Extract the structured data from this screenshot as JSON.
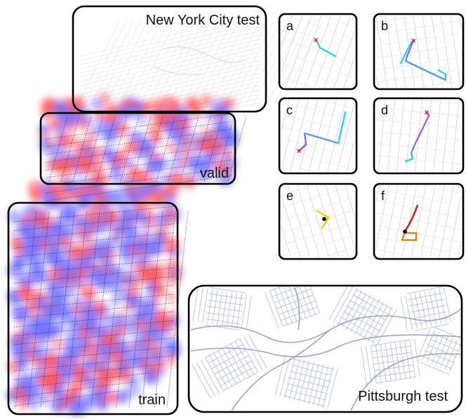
{
  "regions": {
    "nyc_test": {
      "label": "New York City test"
    },
    "valid": {
      "label": "valid"
    },
    "train": {
      "label": "train"
    },
    "pittsburgh_test": {
      "label": "Pittsburgh test"
    }
  },
  "panels": [
    {
      "letter": "a"
    },
    {
      "letter": "b"
    },
    {
      "letter": "c"
    },
    {
      "letter": "d"
    },
    {
      "letter": "e"
    },
    {
      "letter": "f"
    }
  ],
  "colors": {
    "heat_red": "#ff3b3b",
    "heat_blue": "#5a5aff",
    "street": "#d2d2d6",
    "pittsburgh_street": "#b6c0d6",
    "start_marker": "#d81b3c",
    "path_cyan": "#28d0e6",
    "path_violet": "#8a6ce0",
    "path_magenta": "#c040d8",
    "path_yellow": "#f0d000",
    "path_red": "#e01010",
    "path_orange": "#f07800"
  }
}
